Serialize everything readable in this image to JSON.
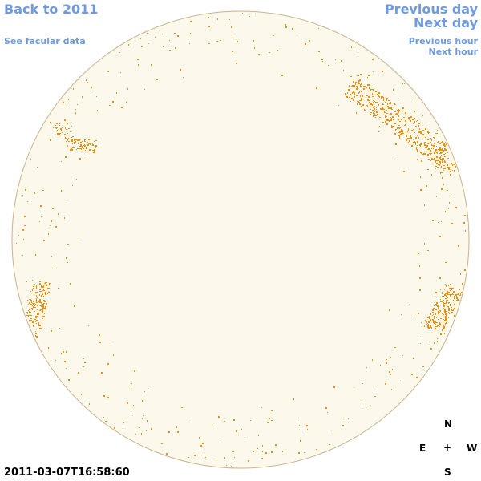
{
  "nav": {
    "back": "Back to 2011",
    "facular": "See facular data",
    "prev_day": "Previous day",
    "next_day": "Next day",
    "prev_hour": "Previous hour",
    "next_hour": "Next hour"
  },
  "timestamp": "2011-03-07T16:58:60",
  "compass": {
    "north": "N",
    "east": "E",
    "center": "+",
    "west": "W",
    "south": "S"
  }
}
